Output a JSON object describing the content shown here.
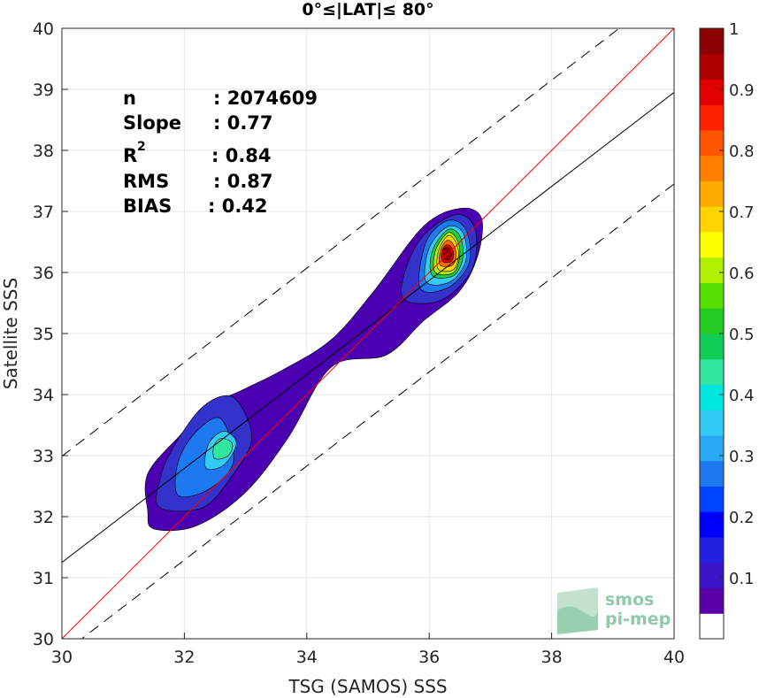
{
  "chart_data": {
    "type": "heatmap",
    "title": "0°≤|LAT|≤ 80°",
    "xlabel": "TSG (SAMOS) SSS",
    "ylabel": "Satellite SSS",
    "xlim": [
      30,
      40
    ],
    "ylim": [
      30,
      40
    ],
    "xticks": [
      "30",
      "32",
      "34",
      "36",
      "38",
      "40"
    ],
    "yticks": [
      "30",
      "31",
      "32",
      "33",
      "34",
      "35",
      "36",
      "37",
      "38",
      "39",
      "40"
    ],
    "grid": true,
    "stats": [
      {
        "label": "n",
        "value": ": 2074609"
      },
      {
        "label": "Slope",
        "value": ": 0.77"
      },
      {
        "label": "R",
        "sup": "2",
        "value": ": 0.84"
      },
      {
        "label": "RMS",
        "value": ": 0.87"
      },
      {
        "label": "BIAS",
        "value": ": 0.42"
      }
    ],
    "lines": {
      "identity": {
        "slope": 1,
        "intercept": 0,
        "color": "#ff0000"
      },
      "fit": {
        "slope": 0.77,
        "intercept": 8.15,
        "color": "#000000"
      },
      "upper_band": {
        "slope": 0.77,
        "intercept": 9.89,
        "style": "dashed"
      },
      "lower_band": {
        "slope": 0.77,
        "intercept": 6.65,
        "style": "dashed"
      }
    },
    "density_contours": [
      {
        "level": 0.05,
        "color": "#4a00b0",
        "points": [
          [
            31.5,
            31.8
          ],
          [
            32.2,
            31.85
          ],
          [
            33.0,
            32.4
          ],
          [
            33.7,
            33.3
          ],
          [
            34.4,
            34.45
          ],
          [
            35.3,
            34.65
          ],
          [
            35.9,
            35.2
          ],
          [
            36.5,
            35.7
          ],
          [
            36.8,
            36.3
          ],
          [
            36.85,
            36.9
          ],
          [
            36.5,
            37.05
          ],
          [
            35.9,
            36.75
          ],
          [
            35.1,
            35.7
          ],
          [
            34.4,
            34.9
          ],
          [
            33.6,
            34.4
          ],
          [
            33.0,
            34.1
          ],
          [
            32.4,
            33.8
          ],
          [
            31.9,
            33.3
          ],
          [
            31.4,
            32.7
          ],
          [
            31.4,
            32.1
          ]
        ]
      },
      {
        "level": 0.15,
        "color": "#3333cc",
        "points": [
          [
            31.6,
            32.15
          ],
          [
            32.3,
            32.15
          ],
          [
            32.8,
            32.7
          ],
          [
            33.1,
            33.3
          ],
          [
            32.8,
            33.95
          ],
          [
            32.3,
            33.8
          ],
          [
            31.8,
            33.1
          ],
          [
            31.6,
            32.6
          ]
        ]
      },
      {
        "level": 0.25,
        "color": "#1e78f0",
        "points": [
          [
            31.9,
            32.35
          ],
          [
            32.4,
            32.45
          ],
          [
            32.8,
            32.9
          ],
          [
            32.6,
            33.6
          ],
          [
            32.2,
            33.4
          ],
          [
            31.9,
            32.9
          ]
        ]
      },
      {
        "level": 0.35,
        "color": "#33ccf5",
        "points": [
          [
            32.35,
            32.8
          ],
          [
            32.65,
            32.85
          ],
          [
            32.85,
            33.2
          ],
          [
            32.65,
            33.4
          ],
          [
            32.4,
            33.2
          ]
        ]
      },
      {
        "level": 0.45,
        "color": "#33e6a0",
        "points": [
          [
            32.5,
            32.95
          ],
          [
            32.72,
            33.0
          ],
          [
            32.78,
            33.2
          ],
          [
            32.6,
            33.28
          ],
          [
            32.48,
            33.15
          ]
        ]
      },
      {
        "level": 0.15,
        "color": "#3333cc",
        "points": [
          [
            35.6,
            35.55
          ],
          [
            36.2,
            35.55
          ],
          [
            36.7,
            36.05
          ],
          [
            36.75,
            36.7
          ],
          [
            36.45,
            36.95
          ],
          [
            35.9,
            36.6
          ],
          [
            35.6,
            36.0
          ]
        ]
      },
      {
        "level": 0.25,
        "color": "#1e78f0",
        "points": [
          [
            35.85,
            35.75
          ],
          [
            36.3,
            35.75
          ],
          [
            36.65,
            36.15
          ],
          [
            36.6,
            36.7
          ],
          [
            36.3,
            36.85
          ],
          [
            35.95,
            36.5
          ]
        ]
      },
      {
        "level": 0.35,
        "color": "#33ccf5",
        "points": [
          [
            35.95,
            35.85
          ],
          [
            36.35,
            35.85
          ],
          [
            36.6,
            36.2
          ],
          [
            36.55,
            36.65
          ],
          [
            36.3,
            36.75
          ],
          [
            36.0,
            36.4
          ]
        ]
      },
      {
        "level": 0.5,
        "color": "#22cc44",
        "points": [
          [
            36.05,
            35.95
          ],
          [
            36.4,
            35.95
          ],
          [
            36.55,
            36.25
          ],
          [
            36.5,
            36.6
          ],
          [
            36.3,
            36.7
          ],
          [
            36.05,
            36.35
          ]
        ]
      },
      {
        "level": 0.6,
        "color": "#b0f000",
        "points": [
          [
            36.1,
            36.0
          ],
          [
            36.4,
            36.0
          ],
          [
            36.5,
            36.3
          ],
          [
            36.45,
            36.55
          ],
          [
            36.3,
            36.65
          ],
          [
            36.1,
            36.35
          ]
        ]
      },
      {
        "level": 0.7,
        "color": "#ffd400",
        "points": [
          [
            36.15,
            36.05
          ],
          [
            36.4,
            36.05
          ],
          [
            36.48,
            36.3
          ],
          [
            36.42,
            36.52
          ],
          [
            36.3,
            36.6
          ],
          [
            36.15,
            36.35
          ]
        ]
      },
      {
        "level": 0.8,
        "color": "#ff6a00",
        "points": [
          [
            36.18,
            36.12
          ],
          [
            36.38,
            36.12
          ],
          [
            36.44,
            36.3
          ],
          [
            36.38,
            36.48
          ],
          [
            36.28,
            36.52
          ],
          [
            36.18,
            36.35
          ]
        ]
      },
      {
        "level": 0.9,
        "color": "#e00000",
        "points": [
          [
            36.22,
            36.18
          ],
          [
            36.36,
            36.18
          ],
          [
            36.4,
            36.32
          ],
          [
            36.34,
            36.44
          ],
          [
            36.26,
            36.44
          ],
          [
            36.2,
            36.32
          ]
        ]
      },
      {
        "level": 1.0,
        "color": "#8b0000",
        "points": [
          [
            36.25,
            36.22
          ],
          [
            36.34,
            36.22
          ],
          [
            36.36,
            36.32
          ],
          [
            36.31,
            36.4
          ],
          [
            36.25,
            36.4
          ],
          [
            36.23,
            36.32
          ]
        ]
      }
    ],
    "colorbar": {
      "ticks": [
        "0.1",
        "0.2",
        "0.3",
        "0.4",
        "0.5",
        "0.6",
        "0.7",
        "0.8",
        "0.9",
        "1"
      ],
      "colors": [
        "#ffffff",
        "#5a00a8",
        "#3a15c8",
        "#2020e0",
        "#0000ff",
        "#0044ff",
        "#1e78f0",
        "#29a8f5",
        "#33ccf5",
        "#00e8e0",
        "#33e6a0",
        "#11cc55",
        "#22cc22",
        "#55e000",
        "#b0f000",
        "#ffff00",
        "#ffd400",
        "#ffaa00",
        "#ff8000",
        "#ff5500",
        "#ff2200",
        "#e00000",
        "#b00000",
        "#8b0000"
      ]
    },
    "watermark": {
      "line1": "smos",
      "line2": "pi-mep"
    }
  }
}
